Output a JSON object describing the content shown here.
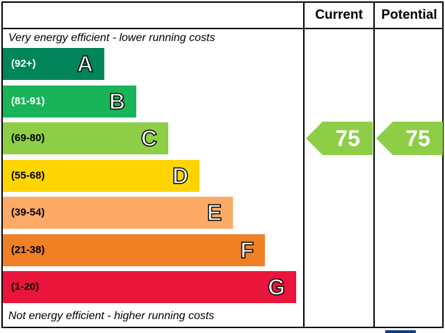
{
  "header": {
    "current_label": "Current",
    "potential_label": "Potential"
  },
  "top_note": "Very energy efficient - lower running costs",
  "bottom_note": "Not energy efficient - higher running costs",
  "colors": {
    "A": "#00855a",
    "B": "#19b459",
    "C": "#8dce46",
    "D": "#ffd500",
    "E": "#fcaa65",
    "F": "#ef8023",
    "G": "#e9153b"
  },
  "chart_data": {
    "type": "bar",
    "categories": [
      "A",
      "B",
      "C",
      "D",
      "E",
      "F",
      "G"
    ],
    "bands": [
      {
        "letter": "A",
        "range": "(92+)",
        "min": 92,
        "max": null,
        "color": "#00855a",
        "range_text_color": "#ffffff"
      },
      {
        "letter": "B",
        "range": "(81-91)",
        "min": 81,
        "max": 91,
        "color": "#19b459",
        "range_text_color": "#ffffff"
      },
      {
        "letter": "C",
        "range": "(69-80)",
        "min": 69,
        "max": 80,
        "color": "#8dce46",
        "range_text_color": "#000000"
      },
      {
        "letter": "D",
        "range": "(55-68)",
        "min": 55,
        "max": 68,
        "color": "#ffd500",
        "range_text_color": "#000000"
      },
      {
        "letter": "E",
        "range": "(39-54)",
        "min": 39,
        "max": 54,
        "color": "#fcaa65",
        "range_text_color": "#000000"
      },
      {
        "letter": "F",
        "range": "(21-38)",
        "min": 21,
        "max": 38,
        "color": "#ef8023",
        "range_text_color": "#000000"
      },
      {
        "letter": "G",
        "range": "(1-20)",
        "min": 1,
        "max": 20,
        "color": "#e9153b",
        "range_text_color": "#000000"
      }
    ],
    "series": [
      {
        "name": "Current",
        "value": 75,
        "band": "C"
      },
      {
        "name": "Potential",
        "value": 75,
        "band": "C"
      }
    ]
  }
}
